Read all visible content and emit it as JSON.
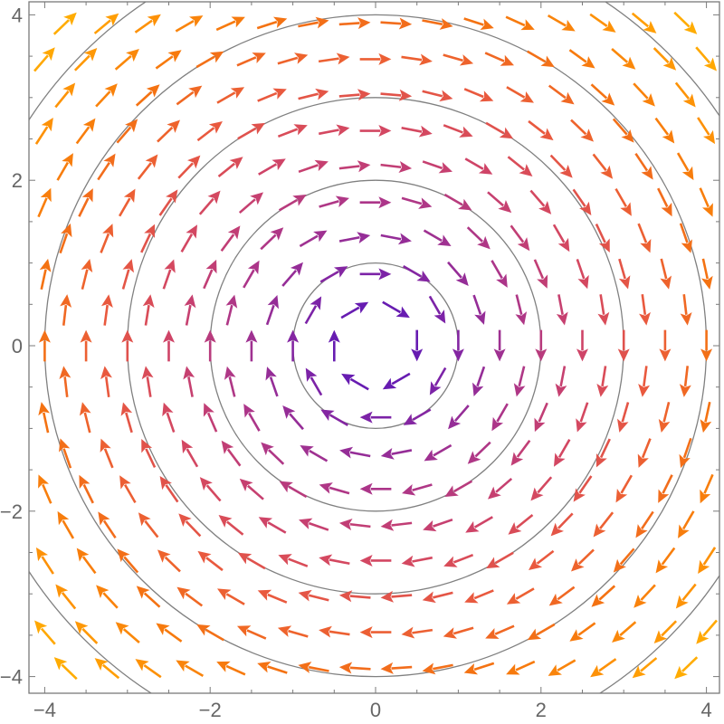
{
  "chart_data": {
    "type": "vector_field",
    "title": "",
    "xlabel": "",
    "ylabel": "",
    "field": "(y, -x)",
    "description": "Clockwise rotational vector field with circular stream contours",
    "xlim": [
      -4.2,
      4.2
    ],
    "ylim": [
      -4.2,
      4.2
    ],
    "x_ticks": [
      -4,
      -2,
      0,
      2,
      4
    ],
    "x_tick_labels": [
      "−4",
      "−2",
      "0",
      "2",
      "4"
    ],
    "y_ticks": [
      -4,
      -2,
      0,
      2,
      4
    ],
    "y_tick_labels": [
      "−4",
      "−2",
      "0",
      "2",
      "4"
    ],
    "minor_tick_step": 0.5,
    "contour_radii": [
      1,
      2,
      3,
      4,
      5
    ],
    "sampling": {
      "lattice": "triangular",
      "x_spacing": 0.5,
      "row_spacing": 0.433,
      "row_offset": 0.25
    },
    "arrow_length_units": 0.38,
    "color_scale": {
      "by": "distance_from_origin",
      "max_distance": 5.8,
      "stops": [
        "#4a12bf",
        "#7a22a8",
        "#a8348c",
        "#cf4468",
        "#ea5a3c",
        "#f5740f",
        "#ff9a05",
        "#ffbd00"
      ]
    },
    "contour_color": "#808080",
    "frame_color": "#7a7a7a"
  }
}
